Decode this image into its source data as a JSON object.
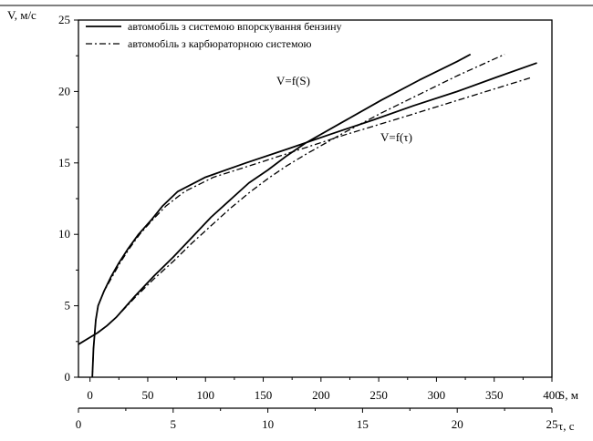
{
  "chart_data": {
    "type": "line",
    "y_axis": {
      "label": "V, м/с",
      "range": [
        0,
        25
      ],
      "ticks": [
        0,
        5,
        10,
        15,
        20,
        25
      ]
    },
    "x_axis_primary": {
      "label": "S, м",
      "range": [
        -10,
        400
      ],
      "ticks": [
        0,
        50,
        100,
        150,
        200,
        250,
        300,
        350,
        400
      ]
    },
    "x_axis_secondary": {
      "label": "τ, с",
      "range": [
        0,
        25
      ],
      "ticks": [
        0,
        5,
        10,
        15,
        20,
        25
      ]
    },
    "legend": {
      "placement": "top-left",
      "entries": [
        {
          "label": "автомобіль з системою впорскування бензину",
          "style": "solid"
        },
        {
          "label": "автомобіль з карбюраторною системою",
          "style": "dash-dot"
        }
      ]
    },
    "annotations": [
      {
        "text": "V=f(S)",
        "near_x": 140,
        "near_y": 20.5,
        "axis": "S"
      },
      {
        "text": "V=f(τ)",
        "near_x": 265,
        "near_y": 16.5,
        "axis": "S"
      }
    ],
    "series": [
      {
        "style": "solid",
        "curve": "V=f(S)",
        "x_axis": "S",
        "points": [
          [
            2,
            0
          ],
          [
            2.5,
            1
          ],
          [
            3,
            2
          ],
          [
            4,
            3
          ],
          [
            5,
            4
          ],
          [
            7,
            5
          ],
          [
            12,
            6
          ],
          [
            18,
            7
          ],
          [
            25,
            8
          ],
          [
            33,
            9
          ],
          [
            42,
            10
          ],
          [
            53,
            11
          ],
          [
            63,
            12
          ],
          [
            76,
            13
          ],
          [
            100,
            14
          ],
          [
            135,
            15
          ],
          [
            172,
            16
          ],
          [
            208,
            17
          ],
          [
            245,
            18
          ],
          [
            280,
            19
          ],
          [
            318,
            20
          ],
          [
            352,
            21
          ],
          [
            387,
            22
          ]
        ]
      },
      {
        "style": "dash-dot",
        "curve": "V=f(S)",
        "x_axis": "S",
        "points": [
          [
            2,
            0
          ],
          [
            2.5,
            1
          ],
          [
            3,
            2
          ],
          [
            4,
            3
          ],
          [
            5,
            4
          ],
          [
            7,
            5
          ],
          [
            12,
            6
          ],
          [
            19,
            7
          ],
          [
            26,
            8
          ],
          [
            34,
            9
          ],
          [
            43,
            10
          ],
          [
            54,
            11
          ],
          [
            66,
            12
          ],
          [
            82,
            13
          ],
          [
            107,
            14
          ],
          [
            146,
            15
          ],
          [
            184,
            16
          ],
          [
            222,
            17
          ],
          [
            263,
            18
          ],
          [
            303,
            19
          ],
          [
            343,
            20
          ],
          [
            383,
            21
          ]
        ]
      },
      {
        "style": "solid",
        "curve": "V=f(τ)",
        "x_axis": "τ",
        "points": [
          [
            0,
            2.3
          ],
          [
            0.5,
            2.7
          ],
          [
            1,
            3.1
          ],
          [
            1.5,
            3.6
          ],
          [
            2,
            4.2
          ],
          [
            3,
            5.7
          ],
          [
            4,
            7.1
          ],
          [
            5,
            8.4
          ],
          [
            6,
            9.8
          ],
          [
            7,
            11.2
          ],
          [
            8,
            12.4
          ],
          [
            9,
            13.6
          ],
          [
            10,
            14.5
          ],
          [
            11,
            15.5
          ],
          [
            12,
            16.4
          ],
          [
            14,
            17.9
          ],
          [
            16,
            19.4
          ],
          [
            18,
            20.8
          ],
          [
            20,
            22.1
          ],
          [
            20.7,
            22.6
          ]
        ]
      },
      {
        "style": "dash-dot",
        "curve": "V=f(τ)",
        "x_axis": "τ",
        "points": [
          [
            0,
            2.3
          ],
          [
            0.5,
            2.7
          ],
          [
            1,
            3.1
          ],
          [
            1.5,
            3.6
          ],
          [
            2,
            4.2
          ],
          [
            3,
            5.6
          ],
          [
            4,
            6.9
          ],
          [
            5,
            8.1
          ],
          [
            6,
            9.4
          ],
          [
            7,
            10.6
          ],
          [
            8,
            11.8
          ],
          [
            9,
            12.9
          ],
          [
            10,
            13.9
          ],
          [
            11,
            14.8
          ],
          [
            12,
            15.6
          ],
          [
            14,
            17.1
          ],
          [
            16,
            18.5
          ],
          [
            18,
            19.8
          ],
          [
            20,
            21.1
          ],
          [
            22,
            22.3
          ],
          [
            22.5,
            22.6
          ]
        ]
      }
    ]
  }
}
